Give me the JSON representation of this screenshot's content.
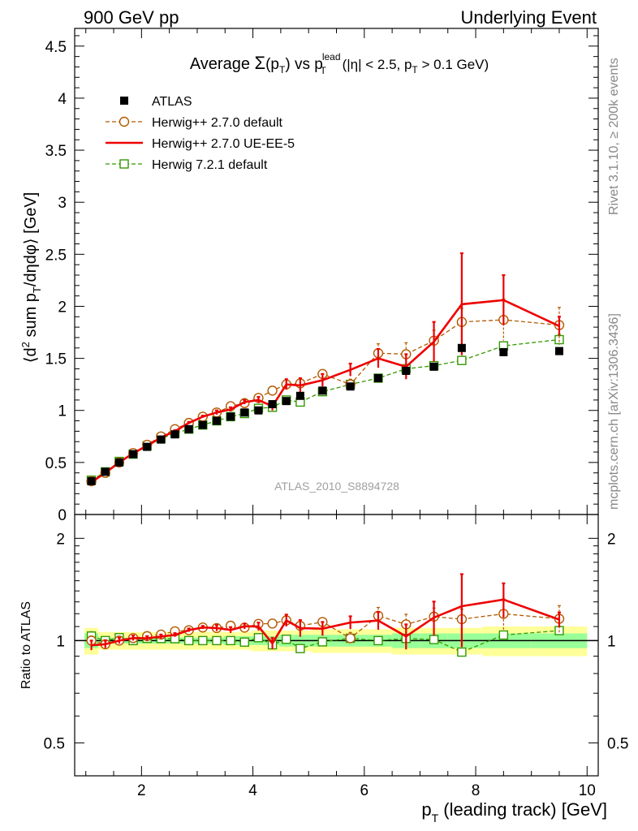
{
  "header": {
    "left": "900 GeV pp",
    "right": "Underlying Event",
    "side_top": "Rivet 3.1.10, ≥ 200k events",
    "side_bottom": "mcplots.cern.ch [arXiv:1306.3436]"
  },
  "title": {
    "prefix": "Average ",
    "sigma": "Σ",
    "arg": "(p",
    "arg_sub": "T",
    "arg_close": ")",
    "vs": " vs p",
    "vs_sup": "lead",
    "vs_sub": "T",
    "cuts": " (|η| < 2.5, p",
    "cuts_sub": "T",
    "cuts_end": " > 0.1 GeV)"
  },
  "watermark": "ATLAS_2010_S8894728",
  "axes": {
    "ylabel_main": "⟨d² sum p_T/dηdφ⟩ [GeV]",
    "ylabel_ratio": "Ratio to ATLAS",
    "xlabel": "p_T (leading track) [GeV]"
  },
  "chart_data": {
    "type": "line",
    "xlim": [
      0.8,
      10.2
    ],
    "ylim_main": [
      0,
      4.67
    ],
    "ylim_ratio": [
      0.4,
      2.35
    ],
    "ratio_scale": "log",
    "xticks": [
      2,
      4,
      6,
      8,
      10
    ],
    "yticks_main": [
      0,
      0.5,
      1,
      1.5,
      2,
      2.5,
      3,
      3.5,
      4,
      4.5
    ],
    "yticks_ratio": [
      0.5,
      1,
      2
    ],
    "legend_position": "top-left",
    "x": [
      1.1,
      1.35,
      1.6,
      1.85,
      2.1,
      2.35,
      2.6,
      2.85,
      3.1,
      3.35,
      3.6,
      3.85,
      4.1,
      4.35,
      4.6,
      4.85,
      5.25,
      5.75,
      6.25,
      6.75,
      7.25,
      7.75,
      8.5,
      9.5
    ],
    "ref": {
      "name": "ATLAS",
      "color": "#000000",
      "values": [
        0.32,
        0.41,
        0.5,
        0.58,
        0.65,
        0.72,
        0.77,
        0.82,
        0.86,
        0.9,
        0.94,
        0.98,
        1.0,
        1.06,
        1.09,
        1.14,
        1.19,
        1.23,
        1.31,
        1.38,
        1.42,
        1.6,
        1.56,
        1.57
      ],
      "stat_band": [
        0.05,
        0.02,
        0.02,
        0.02,
        0.02,
        0.02,
        0.02,
        0.02,
        0.02,
        0.02,
        0.03,
        0.03,
        0.03,
        0.03,
        0.04,
        0.04,
        0.04,
        0.04,
        0.04,
        0.05,
        0.05,
        0.05,
        0.05,
        0.05
      ],
      "total_band": [
        0.09,
        0.06,
        0.06,
        0.06,
        0.06,
        0.06,
        0.06,
        0.06,
        0.06,
        0.06,
        0.06,
        0.06,
        0.07,
        0.07,
        0.07,
        0.07,
        0.08,
        0.08,
        0.08,
        0.09,
        0.09,
        0.09,
        0.1,
        0.1
      ]
    },
    "series": [
      {
        "name": "Herwig++ 2.7.0 default",
        "color": "#b35900",
        "style": "dashed",
        "marker": "circle",
        "values": [
          0.32,
          0.4,
          0.5,
          0.59,
          0.67,
          0.75,
          0.82,
          0.88,
          0.94,
          0.98,
          1.04,
          1.07,
          1.12,
          1.19,
          1.25,
          1.26,
          1.35,
          1.25,
          1.55,
          1.54,
          1.67,
          1.85,
          1.87,
          1.82
        ],
        "errors": [
          0.01,
          0.01,
          0.01,
          0.01,
          0.01,
          0.01,
          0.01,
          0.01,
          0.01,
          0.01,
          0.01,
          0.01,
          0.02,
          0.02,
          0.03,
          0.03,
          0.03,
          0.05,
          0.09,
          0.11,
          0.1,
          0.13,
          0.2,
          0.17
        ]
      },
      {
        "name": "Herwig++ 2.7.0 UE-EE-5",
        "color": "#ee0000",
        "style": "solid",
        "marker": "none",
        "values": [
          0.31,
          0.4,
          0.5,
          0.59,
          0.66,
          0.74,
          0.8,
          0.88,
          0.94,
          0.98,
          1.01,
          1.08,
          1.1,
          1.04,
          1.25,
          1.24,
          1.29,
          1.39,
          1.5,
          1.42,
          1.66,
          2.02,
          2.06,
          1.81
        ],
        "errors": [
          0.01,
          0.01,
          0.01,
          0.01,
          0.01,
          0.01,
          0.01,
          0.01,
          0.01,
          0.02,
          0.02,
          0.02,
          0.03,
          0.04,
          0.05,
          0.07,
          0.06,
          0.06,
          0.09,
          0.12,
          0.19,
          0.49,
          0.24,
          0.09
        ]
      },
      {
        "name": "Herwig 7.2.1 default",
        "color": "#339900",
        "style": "dashed",
        "marker": "square",
        "values": [
          0.33,
          0.41,
          0.51,
          0.58,
          0.66,
          0.73,
          0.78,
          0.82,
          0.86,
          0.9,
          0.94,
          0.97,
          1.02,
          1.03,
          1.1,
          1.08,
          1.18,
          1.25,
          1.31,
          1.4,
          1.43,
          1.48,
          1.62,
          1.68
        ],
        "errors": [
          0.01,
          0.01,
          0.01,
          0.01,
          0.01,
          0.01,
          0.01,
          0.01,
          0.01,
          0.01,
          0.01,
          0.01,
          0.01,
          0.01,
          0.01,
          0.01,
          0.01,
          0.02,
          0.03,
          0.03,
          0.03,
          0.04,
          0.04,
          0.05
        ]
      }
    ]
  }
}
